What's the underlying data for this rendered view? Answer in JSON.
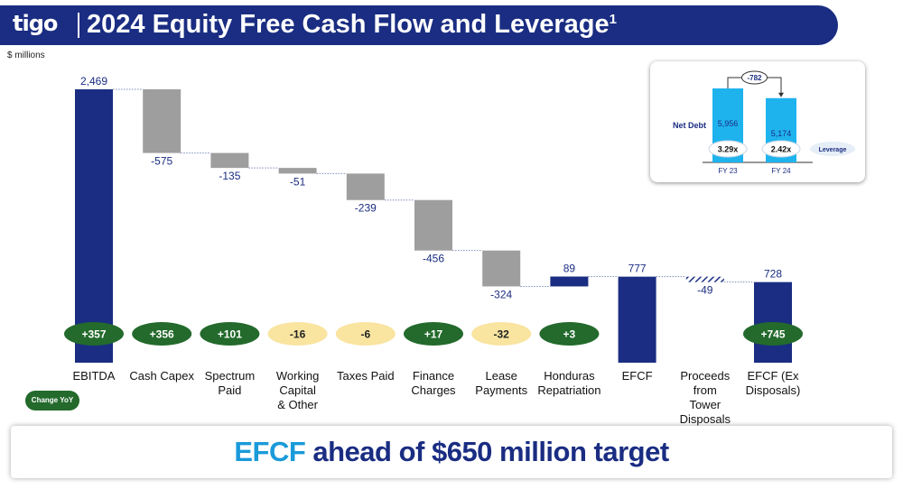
{
  "header": {
    "logo_text": "tigo",
    "title": "2024 Equity Free Cash Flow and Leverage",
    "title_footnote": "1"
  },
  "units_label": "$ millions",
  "colors": {
    "navy": "#1a2d82",
    "gray": "#9e9e9e",
    "positive_pill": "#236a2c",
    "negative_pill": "#f9e4a0",
    "accent_blue": "#1a9ad9",
    "net_debt_bar": "#1fb3ee"
  },
  "chart_data": {
    "type": "bar",
    "subtype": "waterfall",
    "categories": [
      "EBITDA",
      "Cash Capex",
      "Spectrum Paid",
      "Working Capital & Other",
      "Taxes Paid",
      "Finance Charges",
      "Lease Payments",
      "Honduras Repatriation",
      "EFCF",
      "Proceeds from Tower Disposals",
      "EFCF (Ex Disposals)"
    ],
    "category_lines": [
      [
        "EBITDA"
      ],
      [
        "Cash Capex"
      ],
      [
        "Spectrum",
        "Paid"
      ],
      [
        "Working",
        "Capital",
        "& Other"
      ],
      [
        "Taxes Paid"
      ],
      [
        "Finance",
        "Charges"
      ],
      [
        "Lease",
        "Payments"
      ],
      [
        "Honduras",
        "Repatriation"
      ],
      [
        "EFCF"
      ],
      [
        "Proceeds",
        "from",
        "Tower",
        "Disposals"
      ],
      [
        "EFCF (Ex",
        "Disposals)"
      ]
    ],
    "values": [
      2469,
      -575,
      -135,
      -51,
      -239,
      -456,
      -324,
      89,
      777,
      -49,
      728
    ],
    "value_labels": [
      "2,469",
      "-575",
      "-135",
      "-51",
      "-239",
      "-456",
      "-324",
      "89",
      "777",
      "-49",
      "728"
    ],
    "bar_kinds": [
      "total",
      "delta",
      "delta",
      "delta",
      "delta",
      "delta",
      "delta",
      "delta",
      "total",
      "delta",
      "total"
    ],
    "change_yoy": [
      "+357",
      "+356",
      "+101",
      "-16",
      "-6",
      "+17",
      "-32",
      "+3",
      null,
      null,
      "+745"
    ],
    "change_yoy_label": "Change YoY",
    "ylim": [
      0,
      2469
    ]
  },
  "inset": {
    "series_label": "Net Debt",
    "categories": [
      "FY 23",
      "FY 24"
    ],
    "values": [
      5956,
      5174
    ],
    "value_labels": [
      "5,956",
      "5,174"
    ],
    "leverage": [
      "3.29x",
      "2.42x"
    ],
    "leverage_label": "Leverage",
    "change_label": "-782"
  },
  "banner": {
    "highlight": "EFCF",
    "text": " ahead of $650 million target"
  }
}
